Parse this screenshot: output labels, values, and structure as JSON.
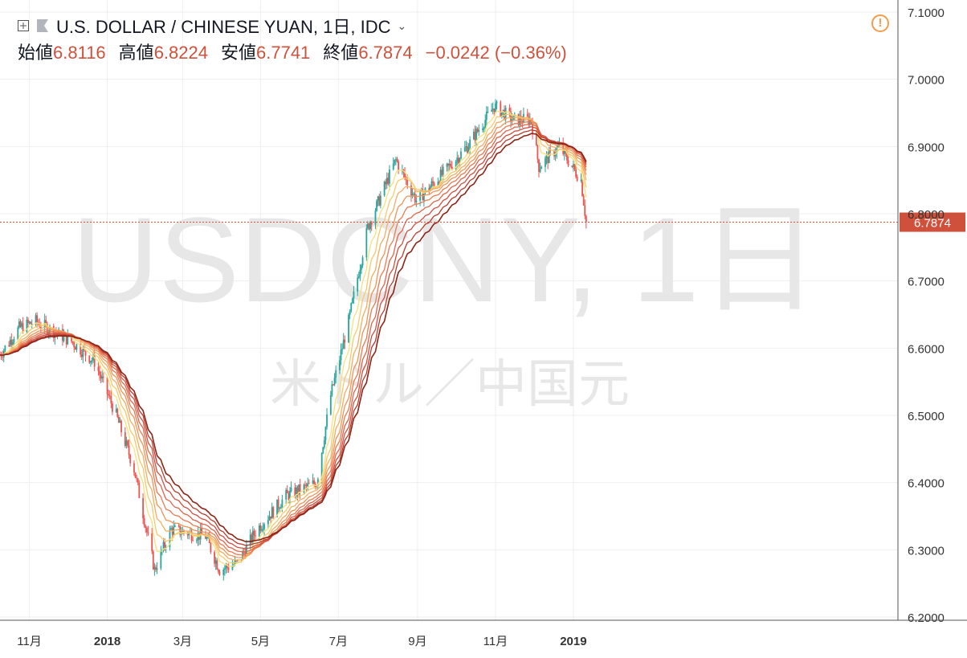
{
  "header": {
    "title": "U.S. DOLLAR / CHINESE YUAN, 1日, IDC",
    "open_label": "始値",
    "open": "6.8116",
    "high_label": "高値",
    "high": "6.8224",
    "low_label": "安値",
    "low": "6.7741",
    "close_label": "終値",
    "close": "6.7874",
    "change": "−0.0242 (−0.36%)"
  },
  "watermark": {
    "symbol": "USDCNY, 1日",
    "name": "米ドル／中国元"
  },
  "icons": {
    "expand": "plus-square-icon",
    "flag": "flag-icon",
    "dropdown": "chevron-down-icon",
    "alert": "alert-icon"
  },
  "colors": {
    "up": "#26a69a",
    "down": "#ef5350",
    "price_label_bg": "#d0513b",
    "ribbon_fast": "#f9e07a",
    "ribbon_slow": "#8b2416"
  },
  "chart_data": {
    "type": "line",
    "title": "U.S. DOLLAR / CHINESE YUAN, 1日, IDC",
    "ylim": [
      6.2,
      7.1
    ],
    "y_ticks": [
      "7.1000",
      "7.0000",
      "6.9000",
      "6.8000",
      "6.7000",
      "6.6000",
      "6.5000",
      "6.4000",
      "6.3000",
      "6.2000"
    ],
    "x_ticks": [
      "11月",
      "2018",
      "3月",
      "5月",
      "7月",
      "9月",
      "11月",
      "2019"
    ],
    "last_price": "6.7874",
    "price_anchors": [
      {
        "date": "2017-10-09",
        "value": 6.59
      },
      {
        "date": "2017-10-24",
        "value": 6.63
      },
      {
        "date": "2017-11-06",
        "value": 6.64
      },
      {
        "date": "2017-12-04",
        "value": 6.61
      },
      {
        "date": "2017-12-22",
        "value": 6.58
      },
      {
        "date": "2018-01-08",
        "value": 6.5
      },
      {
        "date": "2018-01-22",
        "value": 6.42
      },
      {
        "date": "2018-02-07",
        "value": 6.27
      },
      {
        "date": "2018-02-20",
        "value": 6.33
      },
      {
        "date": "2018-03-19",
        "value": 6.32
      },
      {
        "date": "2018-03-30",
        "value": 6.27
      },
      {
        "date": "2018-04-13",
        "value": 6.28
      },
      {
        "date": "2018-04-28",
        "value": 6.33
      },
      {
        "date": "2018-05-21",
        "value": 6.38
      },
      {
        "date": "2018-06-14",
        "value": 6.4
      },
      {
        "date": "2018-06-25",
        "value": 6.53
      },
      {
        "date": "2018-07-09",
        "value": 6.64
      },
      {
        "date": "2018-07-24",
        "value": 6.78
      },
      {
        "date": "2018-08-15",
        "value": 6.88
      },
      {
        "date": "2018-08-31",
        "value": 6.82
      },
      {
        "date": "2018-09-21",
        "value": 6.86
      },
      {
        "date": "2018-10-10",
        "value": 6.9
      },
      {
        "date": "2018-10-31",
        "value": 6.96
      },
      {
        "date": "2018-11-15",
        "value": 6.94
      },
      {
        "date": "2018-11-29",
        "value": 6.94
      },
      {
        "date": "2018-12-05",
        "value": 6.87
      },
      {
        "date": "2018-12-21",
        "value": 6.9
      },
      {
        "date": "2018-12-31",
        "value": 6.87
      },
      {
        "date": "2019-01-07",
        "value": 6.85
      },
      {
        "date": "2019-01-11",
        "value": 6.7874
      }
    ],
    "ma_periods": [
      5,
      8,
      11,
      14,
      17,
      20,
      23,
      26,
      29
    ]
  }
}
